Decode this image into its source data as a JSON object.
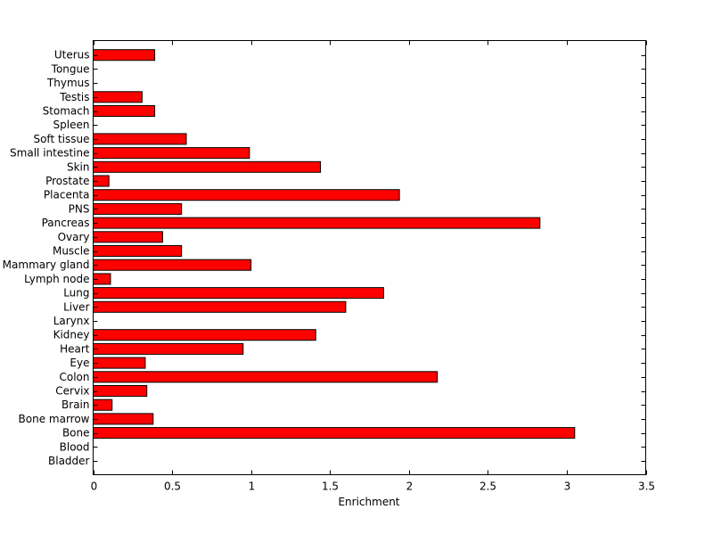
{
  "chart_data": {
    "type": "bar",
    "orientation": "horizontal",
    "xlabel": "Enrichment",
    "ylabel": "",
    "title": "",
    "xlim": [
      0,
      3.5
    ],
    "xticks": [
      0,
      0.5,
      1,
      1.5,
      2,
      2.5,
      3,
      3.5
    ],
    "xtick_labels": [
      "0",
      "0.5",
      "1",
      "1.5",
      "2",
      "2.5",
      "3",
      "3.5"
    ],
    "grid": false,
    "legend": "none",
    "bar_color": "#ff0000",
    "categories": [
      "Bladder",
      "Blood",
      "Bone",
      "Bone marrow",
      "Brain",
      "Cervix",
      "Colon",
      "Eye",
      "Heart",
      "Kidney",
      "Larynx",
      "Liver",
      "Lung",
      "Lymph node",
      "Mammary gland",
      "Muscle",
      "Ovary",
      "Pancreas",
      "PNS",
      "Placenta",
      "Prostate",
      "Skin",
      "Small intestine",
      "Soft tissue",
      "Spleen",
      "Stomach",
      "Testis",
      "Thymus",
      "Tongue",
      "Uterus"
    ],
    "values": [
      0,
      0,
      3.05,
      0.38,
      0.12,
      0.34,
      2.18,
      0.33,
      0.95,
      1.41,
      0,
      1.6,
      1.84,
      0.11,
      1.0,
      0.56,
      0.44,
      2.83,
      0.56,
      1.94,
      0.1,
      1.44,
      0.99,
      0.59,
      0,
      0.39,
      0.31,
      0,
      0,
      0.39
    ]
  }
}
